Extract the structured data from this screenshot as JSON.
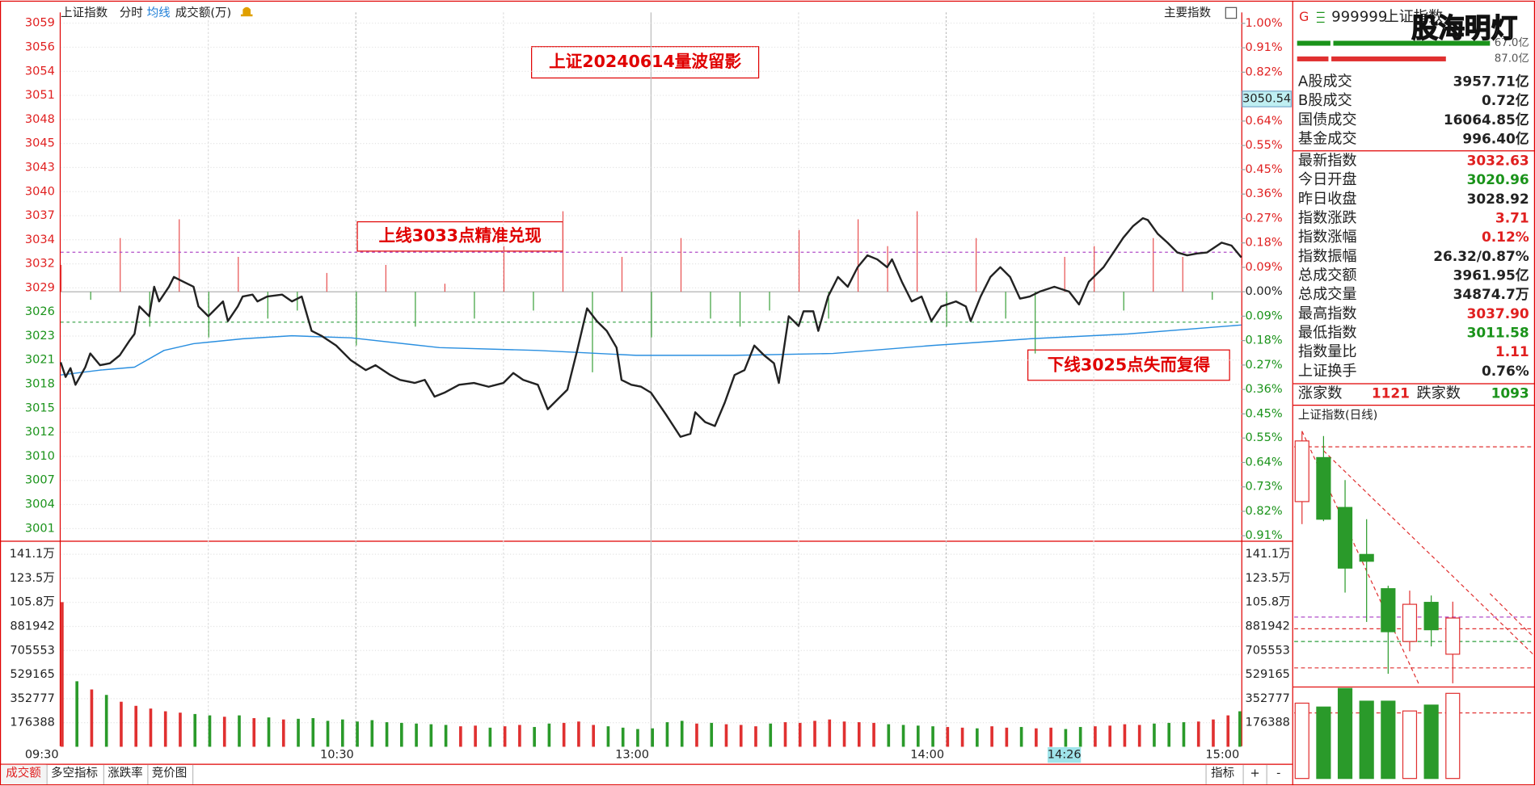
{
  "header": {
    "title": "上证指数",
    "tabs": [
      "分时",
      "均线",
      "成交额(万)"
    ],
    "right": "主要指数"
  },
  "intraday": {
    "type": "line",
    "xlim": [
      0,
      240
    ],
    "xticks": [
      {
        "value": 0,
        "label": "09:30"
      },
      {
        "value": 60,
        "label": "10:30"
      },
      {
        "value": 120,
        "label": "13:00"
      },
      {
        "value": 180,
        "label": "14:00"
      },
      {
        "value": 240,
        "label": "15:00"
      }
    ],
    "ylim": [
      2999.99,
      3060.44
    ],
    "yticks": [
      {
        "value": 3059.21,
        "label": "3059"
      },
      {
        "value": 3056.46,
        "label": "3056"
      },
      {
        "value": 3053.7,
        "label": "3054"
      },
      {
        "value": 3050.95,
        "label": "3051"
      },
      {
        "value": 3048.2,
        "label": "3048"
      },
      {
        "value": 3045.44,
        "label": "3045"
      },
      {
        "value": 3042.69,
        "label": "3043"
      },
      {
        "value": 3039.93,
        "label": "3040"
      },
      {
        "value": 3037.18,
        "label": "3037"
      },
      {
        "value": 3034.43,
        "label": "3034"
      },
      {
        "value": 3031.67,
        "label": "3032"
      },
      {
        "value": 3028.92,
        "label": "3029"
      },
      {
        "value": 3026.17,
        "label": "3026"
      },
      {
        "value": 3023.41,
        "label": "3023"
      },
      {
        "value": 3020.66,
        "label": "3021"
      },
      {
        "value": 3017.9,
        "label": "3018"
      },
      {
        "value": 3015.15,
        "label": "3015"
      },
      {
        "value": 3012.4,
        "label": "3012"
      },
      {
        "value": 3009.64,
        "label": "3010"
      },
      {
        "value": 3006.89,
        "label": "3007"
      },
      {
        "value": 3004.14,
        "label": "3004"
      },
      {
        "value": 3001.38,
        "label": "3001"
      }
    ],
    "y2lim": [
      -0.9276,
      1.0407
    ],
    "y2ticks": [
      {
        "value": 1.0,
        "label": "1.00%"
      },
      {
        "value": 0.909,
        "label": "0.91%"
      },
      {
        "value": 0.818,
        "label": "0.82%"
      },
      {
        "value": 0.636,
        "label": "0.64%"
      },
      {
        "value": 0.545,
        "label": "0.55%"
      },
      {
        "value": 0.455,
        "label": "0.45%"
      },
      {
        "value": 0.364,
        "label": "0.36%"
      },
      {
        "value": 0.273,
        "label": "0.27%"
      },
      {
        "value": 0.182,
        "label": "0.18%"
      },
      {
        "value": 0.091,
        "label": "0.09%"
      },
      {
        "value": 0,
        "label": "0.00%"
      },
      {
        "value": -0.091,
        "label": "0.09%"
      },
      {
        "value": -0.182,
        "label": "0.18%"
      },
      {
        "value": -0.273,
        "label": "0.27%"
      },
      {
        "value": -0.364,
        "label": "0.36%"
      },
      {
        "value": -0.455,
        "label": "0.45%"
      },
      {
        "value": -0.545,
        "label": "0.55%"
      },
      {
        "value": -0.636,
        "label": "0.64%"
      },
      {
        "value": -0.727,
        "label": "0.73%"
      },
      {
        "value": -0.818,
        "label": "0.82%"
      },
      {
        "value": -0.909,
        "label": "0.91%"
      }
    ],
    "price": {
      "color": "#222222",
      "x": [
        0,
        1,
        2,
        3,
        5,
        6,
        8,
        10,
        12,
        14,
        15,
        16,
        18,
        19,
        20,
        22,
        23,
        25,
        27,
        28,
        30,
        31,
        33,
        34,
        36,
        37,
        39,
        40,
        42,
        45,
        47,
        49,
        51,
        53,
        56,
        59,
        62,
        64,
        67,
        69,
        72,
        74,
        76,
        78,
        81,
        84,
        87,
        90,
        92,
        94,
        97,
        99,
        101,
        103,
        105,
        107,
        109,
        111,
        113,
        114,
        116,
        118,
        120,
        123,
        126,
        128,
        129,
        131,
        133,
        135,
        137,
        139,
        141,
        143,
        145,
        146,
        148,
        150,
        151,
        153,
        154,
        156,
        158,
        160,
        162,
        164,
        166,
        168,
        169,
        171,
        173,
        175,
        177,
        179,
        182,
        184,
        185,
        187,
        189,
        191,
        193,
        195,
        197,
        199,
        202,
        205,
        207,
        209,
        212,
        214,
        216,
        218,
        220,
        221,
        223,
        225,
        227,
        229,
        231,
        233,
        236,
        238,
        240
      ],
      "values": [
        3020.41,
        3018.73,
        3019.74,
        3017.83,
        3019.85,
        3021.42,
        3020.07,
        3020.3,
        3021.2,
        3022.88,
        3023.66,
        3026.8,
        3025.68,
        3029.05,
        3027.37,
        3029.05,
        3030.17,
        3029.61,
        3029.05,
        3026.8,
        3025.68,
        3026.24,
        3027.37,
        3025.12,
        3026.8,
        3027.93,
        3028.15,
        3027.37,
        3027.93,
        3028.15,
        3027.37,
        3027.93,
        3024.0,
        3023.44,
        3022.32,
        3020.63,
        3019.51,
        3020.07,
        3018.95,
        3018.39,
        3018.05,
        3018.39,
        3016.48,
        3016.93,
        3017.83,
        3018.05,
        3017.61,
        3018.05,
        3019.18,
        3018.39,
        3017.83,
        3015.03,
        3016.15,
        3017.27,
        3021.76,
        3026.58,
        3025.12,
        3024.0,
        3022.09,
        3018.39,
        3017.83,
        3017.61,
        3016.93,
        3014.46,
        3011.88,
        3012.22,
        3014.69,
        3013.57,
        3013.12,
        3015.81,
        3018.95,
        3019.51,
        3022.32,
        3021.2,
        3020.3,
        3018.05,
        3025.68,
        3024.56,
        3026.24,
        3026.24,
        3024.0,
        3027.93,
        3030.17,
        3029.05,
        3031.29,
        3032.64,
        3032.19,
        3031.29,
        3032.19,
        3029.61,
        3027.37,
        3027.93,
        3025.12,
        3026.8,
        3027.37,
        3026.8,
        3025.12,
        3027.93,
        3030.17,
        3031.29,
        3030.17,
        3027.7,
        3027.93,
        3028.49,
        3029.05,
        3028.49,
        3027.03,
        3029.61,
        3031.29,
        3032.97,
        3034.66,
        3036.0,
        3036.9,
        3036.68,
        3035.11,
        3034.1,
        3032.97,
        3032.64,
        3032.86,
        3032.97,
        3034.1,
        3033.76,
        3032.41
      ]
    },
    "average": {
      "color": "#2a8fe0",
      "x": [
        0,
        8,
        15,
        21,
        27,
        37,
        47,
        59,
        77,
        97,
        117,
        137,
        157,
        177,
        197,
        217,
        240
      ],
      "values": [
        3018.95,
        3019.51,
        3019.85,
        3021.76,
        3022.54,
        3023.1,
        3023.44,
        3023.21,
        3022.09,
        3021.76,
        3021.2,
        3021.2,
        3021.42,
        3022.32,
        3023.1,
        3023.66,
        3024.67
      ]
    },
    "strength": [
      0.1,
      -0.03,
      0.2,
      -0.13,
      0.27,
      -0.17,
      0.13,
      -0.1,
      -0.07,
      0.07,
      -0.2,
      0.1,
      -0.13,
      0.03,
      -0.1,
      0.17,
      -0.07,
      0.3,
      -0.3,
      0.13,
      -0.17,
      0.2,
      -0.1,
      -0.13,
      -0.07,
      0.23,
      -0.1,
      0.27,
      0.17,
      0.3,
      -0.13,
      0.2,
      -0.1,
      -0.23,
      0.13,
      0.17,
      -0.07,
      0.2,
      0.13,
      -0.03,
      0.1
    ],
    "reference_lines": [
      {
        "value": 3033,
        "color": "#b04cc8"
      },
      {
        "value": 3025,
        "color": "#2e9e3e"
      }
    ],
    "annotations": [
      "上证20240614量波留影",
      "上线3033点精准兑现",
      "下线3025点失而复得"
    ],
    "cursor": {
      "price": 3050.54,
      "time": {
        "value": 206,
        "label": "14:26"
      }
    },
    "volume": {
      "ylim": [
        0,
        1411104
      ],
      "yticks": [
        {
          "value": 1411104,
          "label": "141.1万"
        },
        {
          "value": 1234716,
          "label": "123.5万"
        },
        {
          "value": 1058328,
          "label": "105.8万"
        },
        881942,
        705553,
        529165,
        352777,
        176388
      ],
      "values": [
        1060000,
        480000,
        420000,
        380000,
        330000,
        300000,
        280000,
        260000,
        250000,
        240000,
        230000,
        220000,
        230000,
        210000,
        215000,
        200000,
        205000,
        210000,
        190000,
        200000,
        185000,
        195000,
        180000,
        175000,
        170000,
        165000,
        160000,
        150000,
        155000,
        140000,
        150000,
        160000,
        145000,
        170000,
        175000,
        185000,
        160000,
        150000,
        140000,
        130000,
        135000,
        180000,
        190000,
        170000,
        175000,
        165000,
        160000,
        150000,
        170000,
        180000,
        175000,
        190000,
        200000,
        185000,
        180000,
        175000,
        165000,
        160000,
        155000,
        150000,
        145000,
        140000,
        135000,
        150000,
        140000,
        145000,
        135000,
        140000,
        130000,
        145000,
        150000,
        155000,
        165000,
        160000,
        170000,
        175000,
        180000,
        185000,
        200000,
        230000,
        260000
      ]
    }
  },
  "footer": {
    "tabs": [
      "成交额",
      "多空指标",
      "涨跌率",
      "竞价图"
    ],
    "indicator": "指标",
    "zoom": [
      "+",
      "-"
    ]
  },
  "quote": {
    "badge": "G",
    "code": "999999",
    "name": "上证指数",
    "watermark": "股海明灯",
    "bar_labels": [
      "67.0亿",
      "87.0亿"
    ],
    "rows": [
      {
        "label": "A股成交",
        "value": "3957.71亿",
        "color": "black"
      },
      {
        "label": "B股成交",
        "value": "0.72亿",
        "color": "black"
      },
      {
        "label": "国债成交",
        "value": "16064.85亿",
        "color": "black"
      },
      {
        "label": "基金成交",
        "value": "996.40亿",
        "color": "black"
      },
      {
        "label": "最新指数",
        "value": "3032.63",
        "color": "red"
      },
      {
        "label": "今日开盘",
        "value": "3020.96",
        "color": "green"
      },
      {
        "label": "昨日收盘",
        "value": "3028.92",
        "color": "black"
      },
      {
        "label": "指数涨跌",
        "value": "3.71",
        "color": "red"
      },
      {
        "label": "指数涨幅",
        "value": "0.12%",
        "color": "red"
      },
      {
        "label": "指数振幅",
        "value": "26.32/0.87%",
        "color": "black"
      },
      {
        "label": "总成交额",
        "value": "3961.95亿",
        "color": "black"
      },
      {
        "label": "总成交量",
        "value": "34874.7万",
        "color": "black"
      },
      {
        "label": "最高指数",
        "value": "3037.90",
        "color": "red"
      },
      {
        "label": "最低指数",
        "value": "3011.58",
        "color": "green"
      },
      {
        "label": "指数量比",
        "value": "1.11",
        "color": "red"
      },
      {
        "label": "上证换手",
        "value": "0.76%",
        "color": "black"
      }
    ],
    "breadth": {
      "up_label": "涨家数",
      "up": "1121",
      "down_label": "跌家数",
      "down": "1093"
    }
  },
  "daily": {
    "type": "candlestick",
    "title": "上证指数(日线)",
    "ylim": [
      3010.86,
      3094.46
    ],
    "candles": [
      {
        "open": 3070.17,
        "high": 3092.88,
        "low": 3062.91,
        "close": 3089.73
      },
      {
        "open": 3084.37,
        "high": 3091.31,
        "low": 3063.86,
        "close": 3064.49
      },
      {
        "open": 3068.28,
        "high": 3077.11,
        "low": 3040.83,
        "close": 3048.72
      },
      {
        "open": 3053.13,
        "high": 3064.49,
        "low": 3031.37,
        "close": 3050.93
      },
      {
        "open": 3042.09,
        "high": 3043.04,
        "low": 3014.65,
        "close": 3028.21
      },
      {
        "open": 3025.06,
        "high": 3041.46,
        "low": 3021.9,
        "close": 3037.05
      },
      {
        "open": 3037.68,
        "high": 3039.89,
        "low": 3023.48,
        "close": 3028.84
      },
      {
        "open": 3020.96,
        "high": 3037.9,
        "low": 3011.58,
        "close": 3032.63
      }
    ],
    "volume": {
      "ylim": [
        0,
        4190
      ],
      "values": [
        3506,
        3325,
        4190,
        3598,
        3598,
        3142,
        3416,
        3961.95
      ]
    }
  }
}
